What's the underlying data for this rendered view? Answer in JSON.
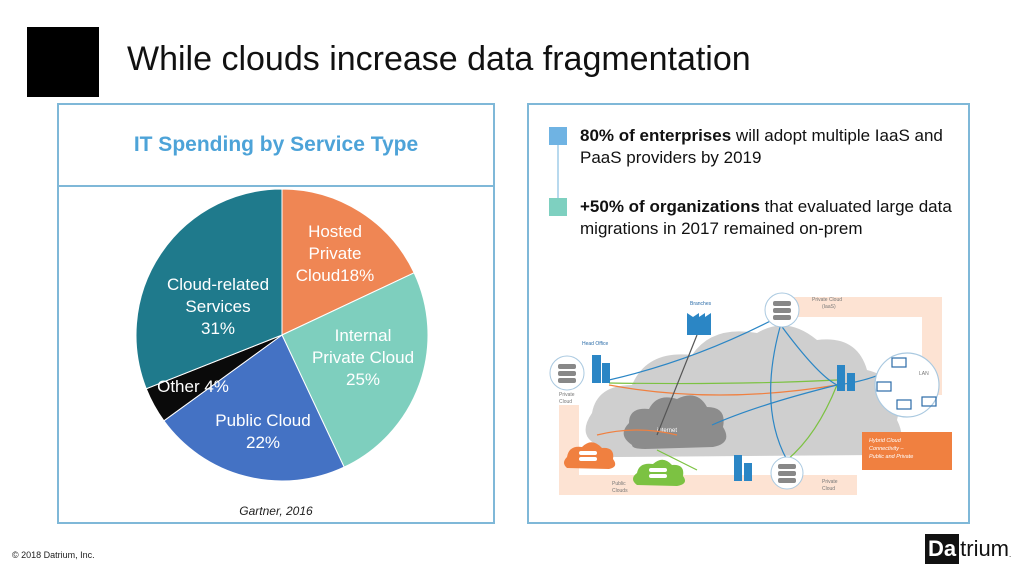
{
  "slide": {
    "title": "While clouds increase data fragmentation",
    "footer": "© 2018 Datrium, Inc.",
    "brand": {
      "prefix": "Da",
      "suffix": "trium",
      "mark": "."
    }
  },
  "chart_data": {
    "type": "pie",
    "title": "IT Spending by Service Type",
    "source": "Gartner, 2016",
    "slices": [
      {
        "name": "Hosted Private Cloud",
        "label_lines": [
          "Hosted",
          "Private",
          "Cloud18%"
        ],
        "value": 18,
        "color": "#ef8654"
      },
      {
        "name": "Internal Private Cloud",
        "label_lines": [
          "Internal",
          "Private Cloud",
          "25%"
        ],
        "value": 25,
        "color": "#7ecfbe"
      },
      {
        "name": "Public Cloud",
        "label_lines": [
          "Public Cloud",
          "22%"
        ],
        "value": 22,
        "color": "#4472c4"
      },
      {
        "name": "Other",
        "label_lines": [
          "Other 4%"
        ],
        "value": 4,
        "color": "#0a0a0a"
      },
      {
        "name": "Cloud-related Services",
        "label_lines": [
          "Cloud-related",
          "Services",
          "31%"
        ],
        "value": 31,
        "color": "#1f7a8c"
      }
    ],
    "colors": {
      "title": "#4da3d8",
      "label": "#ffffff"
    }
  },
  "facts": [
    {
      "bold": "80% of enterprises",
      "rest": " will adopt multiple IaaS and PaaS providers by 2019",
      "color": "#6fb3e3"
    },
    {
      "bold": "+50% of organizations",
      "rest": " that evaluated large data migrations in 2017 remained on-prem",
      "color": "#7ed0c0"
    }
  ],
  "diagram": {
    "labels": {
      "branches": "Branches",
      "private_cloud_iaas": [
        "Private Cloud",
        "(IaaS)"
      ],
      "head_office": "Head Office",
      "private_cloud_left": [
        "Private",
        "Cloud"
      ],
      "lan": "LAN",
      "internet": "internet",
      "public_clouds": [
        "Public",
        "Clouds"
      ],
      "private_cloud_bottom": [
        "Private",
        "Cloud"
      ],
      "hybrid": [
        "Hybrid Cloud",
        "Connectivity –",
        "Public and Private"
      ]
    },
    "colors": {
      "accent": "#f08040",
      "blue": "#2b86c5",
      "green": "#7cc242",
      "cloud": "#c9c9c9",
      "band": "#fde3d3"
    }
  }
}
